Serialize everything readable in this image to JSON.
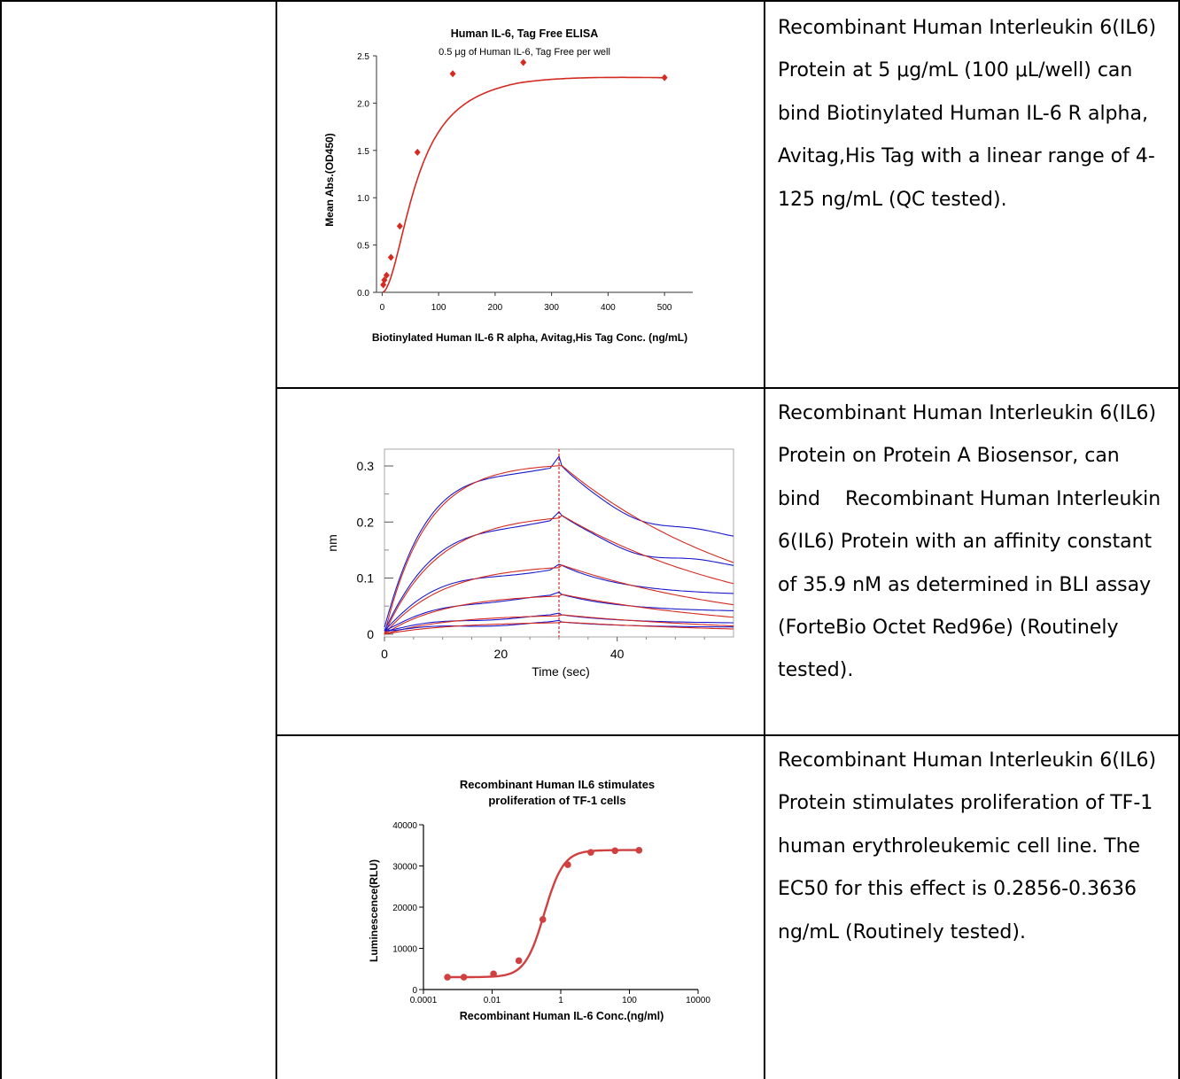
{
  "rows": [
    {
      "description": "Recombinant Human Interleukin 6(IL6) Protein at 5 μg/mL (100 μL/well) can bind Biotinylated Human IL-6 R alpha, Avitag,His Tag with a linear range of 4-125 ng/mL (QC tested)."
    },
    {
      "description": "Recombinant Human Interleukin 6(IL6) Protein on Protein A Biosensor, can bind    Recombinant Human Interleukin 6(IL6) Protein with an affinity constant of 35.9 nM as determined in BLI assay (ForteBio Octet Red96e) (Routinely tested)."
    },
    {
      "description": "Recombinant Human Interleukin 6(IL6) Protein stimulates proliferation of TF-1 human erythroleukemic cell line. The EC50 for this effect is 0.2856-0.3636 ng/mL (Routinely tested)."
    }
  ],
  "chart_data": [
    {
      "type": "scatter",
      "title": "Human IL-6, Tag Free ELISA",
      "subtitle": "0.5 μg of Human IL-6, Tag Free per well",
      "xlabel": "Biotinylated Human IL-6 R alpha, Avitag,His Tag Conc. (ng/mL)",
      "ylabel": "Mean Abs.(OD450)",
      "xlim": [
        -10,
        550
      ],
      "ylim": [
        0,
        2.5
      ],
      "x_ticks": [
        "0",
        "100",
        "200",
        "300",
        "400",
        "500"
      ],
      "y_ticks": [
        "0.0",
        "0.5",
        "1.0",
        "1.5",
        "2.0",
        "2.5"
      ],
      "series": [
        {
          "color": "#d42a20",
          "x": [
            1.95,
            3.9,
            7.8,
            15.6,
            31.25,
            62.5,
            125,
            250,
            500
          ],
          "y": [
            0.08,
            0.13,
            0.18,
            0.37,
            0.7,
            1.48,
            2.31,
            2.43,
            2.27
          ]
        }
      ]
    },
    {
      "type": "line",
      "xlabel": "Time (sec)",
      "ylabel": "nm",
      "xlim": [
        0,
        60
      ],
      "ylim": [
        -0.005,
        0.33
      ],
      "x_ticks": [
        "0",
        "20",
        "40"
      ],
      "y_ticks": [
        "0",
        "0.1",
        "0.2",
        "0.3"
      ],
      "dissociation_start": 30,
      "plateau_values": [
        0.305,
        0.215,
        0.125,
        0.072,
        0.035,
        0.022
      ],
      "colors": {
        "measured": "#1a1acc",
        "fit": "#d42a20",
        "marker": "#cc0000"
      }
    },
    {
      "type": "scatter",
      "title": "Recombinant Human IL6 stimulates proliferation of TF-1 cells",
      "xlabel": "Recombinant Human IL-6 Conc.(ng/ml)",
      "ylabel": "Luminescence(RLU)",
      "x_scale": "log",
      "xlim": [
        0.0001,
        10000
      ],
      "ylim": [
        0,
        40000
      ],
      "x_ticks": [
        "0.0001",
        "0.01",
        "1",
        "100",
        "10000"
      ],
      "y_ticks": [
        "0",
        "10000",
        "20000",
        "30000",
        "40000"
      ],
      "series": [
        {
          "color": "#d04040",
          "x": [
            0.0005,
            0.0015,
            0.011,
            0.06,
            0.3,
            1.6,
            7.5,
            38,
            190
          ],
          "y": [
            3000,
            3000,
            3800,
            7000,
            17000,
            30300,
            33300,
            33700,
            33800
          ]
        }
      ]
    }
  ]
}
